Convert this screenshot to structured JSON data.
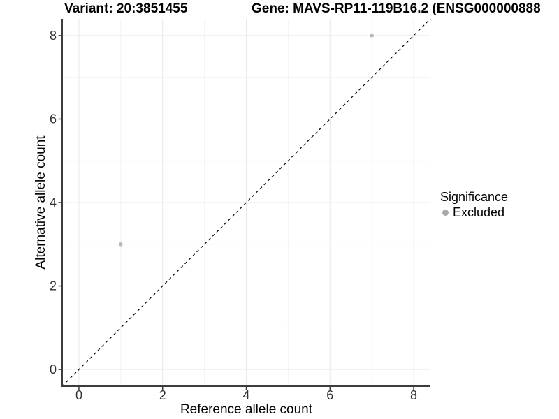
{
  "chart_data": {
    "type": "scatter",
    "title_left": "Variant: 20:3851455",
    "title_right": "Gene: MAVS-RP11-119B16.2 (ENSG000000888",
    "xlabel": "Reference allele count",
    "ylabel": "Alternative allele count",
    "xlim": [
      -0.4,
      8.4
    ],
    "ylim": [
      -0.4,
      8.4
    ],
    "xticks": [
      0,
      2,
      4,
      6,
      8
    ],
    "yticks": [
      0,
      2,
      4,
      6,
      8
    ],
    "xminor": [
      1,
      3,
      5,
      7
    ],
    "yminor": [
      1,
      3,
      5,
      7
    ],
    "grid": "major+minor",
    "series": [
      {
        "name": "Excluded",
        "marker": "circle",
        "color": "#b9b9b9",
        "points": [
          [
            1,
            3
          ],
          [
            7,
            8
          ]
        ]
      }
    ],
    "reference_line": {
      "kind": "identity y=x",
      "from": [
        -0.4,
        -0.4
      ],
      "to": [
        8.4,
        8.4
      ],
      "style": "dashed",
      "color": "#000000"
    },
    "legend": {
      "title": "Significance",
      "position": "right",
      "entries": [
        {
          "label": "Excluded",
          "color": "#a9a9a9"
        }
      ]
    }
  },
  "colors": {
    "background": "#ffffff",
    "grid_major": "#e9e9e9",
    "grid_minor": "#f3f3f3",
    "axis_line": "#3c3c3c",
    "tick_label": "#303030",
    "axis_title": "#000000",
    "title_text": "#000000",
    "point_excluded": "#b9b9b9"
  }
}
